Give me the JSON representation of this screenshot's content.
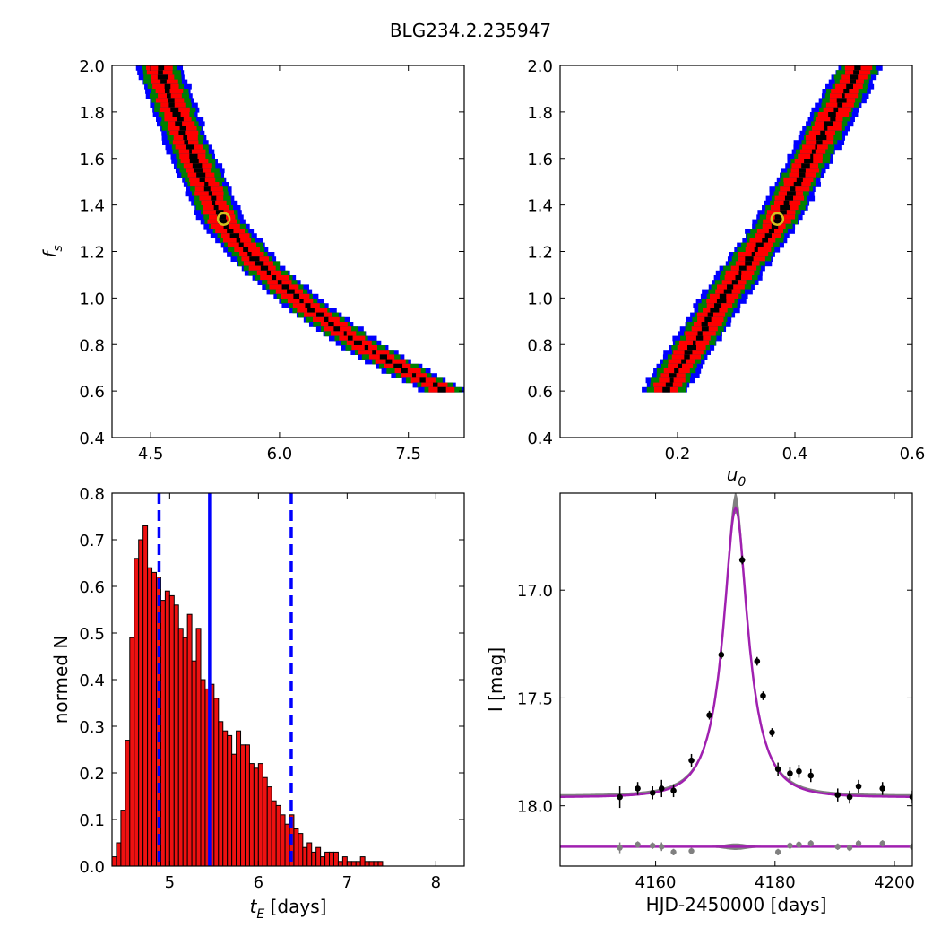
{
  "figure": {
    "title": "BLG234.2.235947"
  },
  "colors": {
    "sigma1": "#000000",
    "sigma2": "#ff0000",
    "sigma3": "#008000",
    "sigma4": "#0000ff",
    "model": "#a020b0",
    "band": "#808080",
    "marker": "#d4c020"
  },
  "chart_data": [
    {
      "type": "heatmap",
      "title": "",
      "xlabel": "",
      "ylabel": "f_s",
      "xlim": [
        4.05,
        8.15
      ],
      "ylim": [
        0.4,
        2.0
      ],
      "xticks": [
        "4.5",
        "6.0",
        "7.5"
      ],
      "yticks": [
        "0.4",
        "0.6",
        "0.8",
        "1.0",
        "1.2",
        "1.4",
        "1.6",
        "1.8",
        "2.0"
      ],
      "ridge": [
        [
          4.6,
          2.0
        ],
        [
          4.95,
          1.65
        ],
        [
          5.35,
          1.33
        ],
        [
          5.8,
          1.14
        ],
        [
          6.3,
          0.98
        ],
        [
          6.9,
          0.82
        ],
        [
          7.6,
          0.67
        ],
        [
          7.9,
          0.62
        ]
      ],
      "best_fit": {
        "x": 5.35,
        "y": 1.34
      }
    },
    {
      "type": "heatmap",
      "title": "",
      "xlabel": "u_0",
      "ylabel": "",
      "xlim": [
        0.0,
        0.6
      ],
      "ylim": [
        0.4,
        2.0
      ],
      "xticks": [
        "0.2",
        "0.4",
        "0.6"
      ],
      "yticks": [
        "0.4",
        "0.6",
        "0.8",
        "1.0",
        "1.2",
        "1.4",
        "1.6",
        "1.8",
        "2.0"
      ],
      "ridge": [
        [
          0.18,
          0.62
        ],
        [
          0.22,
          0.78
        ],
        [
          0.28,
          1.02
        ],
        [
          0.33,
          1.2
        ],
        [
          0.37,
          1.34
        ],
        [
          0.42,
          1.58
        ],
        [
          0.47,
          1.82
        ],
        [
          0.51,
          2.0
        ]
      ],
      "best_fit": {
        "x": 0.37,
        "y": 1.34
      }
    },
    {
      "type": "bar",
      "title": "",
      "xlabel": "t_E  [days]",
      "ylabel": "normed N",
      "xlim": [
        4.35,
        8.32
      ],
      "ylim": [
        0.0,
        0.8
      ],
      "xticks": [
        "5",
        "6",
        "7",
        "8"
      ],
      "yticks": [
        "0.0",
        "0.1",
        "0.2",
        "0.3",
        "0.4",
        "0.5",
        "0.6",
        "0.7",
        "0.8"
      ],
      "bin_start": 4.35,
      "bin_width": 0.05,
      "values": [
        0.02,
        0.05,
        0.12,
        0.27,
        0.49,
        0.66,
        0.7,
        0.73,
        0.64,
        0.63,
        0.62,
        0.57,
        0.59,
        0.58,
        0.56,
        0.51,
        0.49,
        0.54,
        0.44,
        0.51,
        0.4,
        0.38,
        0.39,
        0.36,
        0.31,
        0.29,
        0.28,
        0.24,
        0.29,
        0.26,
        0.26,
        0.22,
        0.21,
        0.22,
        0.19,
        0.17,
        0.14,
        0.13,
        0.11,
        0.09,
        0.11,
        0.08,
        0.07,
        0.04,
        0.05,
        0.03,
        0.04,
        0.02,
        0.03,
        0.03,
        0.03,
        0.01,
        0.02,
        0.01,
        0.01,
        0.01,
        0.02,
        0.01,
        0.01,
        0.01,
        0.01,
        0.0,
        0.0,
        0.0,
        0.0,
        0.0,
        0.0,
        0.0,
        0.0,
        0.0,
        0.0,
        0.0,
        0.0,
        0.0,
        0.0,
        0.0,
        0.0,
        0.0,
        0.0,
        0.0
      ],
      "median": 5.45,
      "interval": [
        4.88,
        6.37
      ]
    },
    {
      "type": "scatter",
      "title": "",
      "xlabel": "HJD-2450000 [days]",
      "ylabel": "I [mag]",
      "xlim": [
        4144,
        4203
      ],
      "ylim": [
        18.28,
        16.55
      ],
      "y_inverted": true,
      "xticks": [
        "4160",
        "4180",
        "4200"
      ],
      "yticks": [
        "17.0",
        "17.5",
        "18.0"
      ],
      "model": {
        "t0": 4173.4,
        "baseline": 17.96,
        "peak": 16.62,
        "tE": 5.45,
        "u0": 0.37
      },
      "points": [
        {
          "x": 4154,
          "y": 17.96,
          "err": 0.05
        },
        {
          "x": 4157,
          "y": 17.92,
          "err": 0.03
        },
        {
          "x": 4159.5,
          "y": 17.94,
          "err": 0.03
        },
        {
          "x": 4161,
          "y": 17.92,
          "err": 0.04
        },
        {
          "x": 4163,
          "y": 17.93,
          "err": 0.03
        },
        {
          "x": 4166,
          "y": 17.79,
          "err": 0.03
        },
        {
          "x": 4169,
          "y": 17.58,
          "err": 0.02
        },
        {
          "x": 4171,
          "y": 17.3,
          "err": 0.02
        },
        {
          "x": 4174.5,
          "y": 16.86,
          "err": 0.02
        },
        {
          "x": 4177,
          "y": 17.33,
          "err": 0.02
        },
        {
          "x": 4178,
          "y": 17.49,
          "err": 0.02
        },
        {
          "x": 4179.5,
          "y": 17.66,
          "err": 0.02
        },
        {
          "x": 4180.5,
          "y": 17.83,
          "err": 0.03
        },
        {
          "x": 4182.5,
          "y": 17.85,
          "err": 0.03
        },
        {
          "x": 4184,
          "y": 17.84,
          "err": 0.03
        },
        {
          "x": 4186,
          "y": 17.86,
          "err": 0.03
        },
        {
          "x": 4190.5,
          "y": 17.95,
          "err": 0.03
        },
        {
          "x": 4192.5,
          "y": 17.96,
          "err": 0.03
        },
        {
          "x": 4194,
          "y": 17.91,
          "err": 0.03
        },
        {
          "x": 4198,
          "y": 17.92,
          "err": 0.03
        },
        {
          "x": 4203,
          "y": 17.96,
          "err": 0.03
        }
      ],
      "residuals": [
        {
          "x": 4154,
          "y": 0.01,
          "err": 0.05
        },
        {
          "x": 4157,
          "y": -0.02,
          "err": 0.03
        },
        {
          "x": 4159.5,
          "y": -0.01,
          "err": 0.03
        },
        {
          "x": 4161,
          "y": 0.0,
          "err": 0.04
        },
        {
          "x": 4163,
          "y": 0.05,
          "err": 0.03
        },
        {
          "x": 4166,
          "y": 0.04,
          "err": 0.03
        },
        {
          "x": 4180.5,
          "y": 0.05,
          "err": 0.03
        },
        {
          "x": 4182.5,
          "y": -0.01,
          "err": 0.03
        },
        {
          "x": 4184,
          "y": -0.02,
          "err": 0.03
        },
        {
          "x": 4186,
          "y": -0.03,
          "err": 0.03
        },
        {
          "x": 4190.5,
          "y": 0.0,
          "err": 0.03
        },
        {
          "x": 4192.5,
          "y": 0.01,
          "err": 0.03
        },
        {
          "x": 4194,
          "y": -0.03,
          "err": 0.03
        },
        {
          "x": 4198,
          "y": -0.03,
          "err": 0.03
        },
        {
          "x": 4203,
          "y": 0.0,
          "err": 0.03
        }
      ]
    }
  ]
}
